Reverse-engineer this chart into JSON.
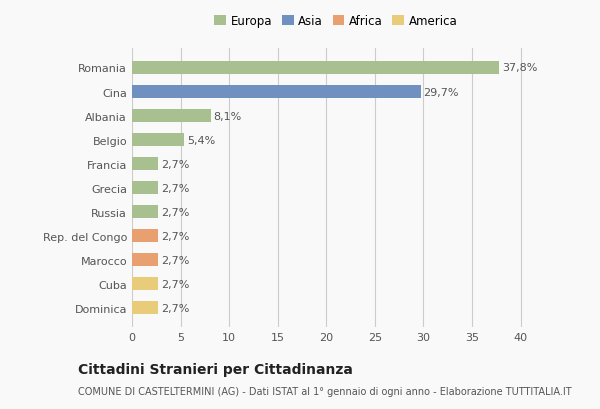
{
  "categories": [
    "Dominica",
    "Cuba",
    "Marocco",
    "Rep. del Congo",
    "Russia",
    "Grecia",
    "Francia",
    "Belgio",
    "Albania",
    "Cina",
    "Romania"
  ],
  "values": [
    2.7,
    2.7,
    2.7,
    2.7,
    2.7,
    2.7,
    2.7,
    5.4,
    8.1,
    29.7,
    37.8
  ],
  "labels": [
    "2,7%",
    "2,7%",
    "2,7%",
    "2,7%",
    "2,7%",
    "2,7%",
    "2,7%",
    "5,4%",
    "8,1%",
    "29,7%",
    "37,8%"
  ],
  "colors": [
    "#e8cc7a",
    "#e8cc7a",
    "#e8a070",
    "#e8a070",
    "#a8c090",
    "#a8c090",
    "#a8c090",
    "#a8c090",
    "#a8c090",
    "#7090c0",
    "#a8c090"
  ],
  "continent_colors": {
    "Europa": "#a8c090",
    "Asia": "#7090c0",
    "Africa": "#e8a070",
    "America": "#e8cc7a"
  },
  "xlim": [
    0,
    42
  ],
  "xticks": [
    0,
    5,
    10,
    15,
    20,
    25,
    30,
    35,
    40
  ],
  "title": "Cittadini Stranieri per Cittadinanza",
  "subtitle": "COMUNE DI CASTELTERMINI (AG) - Dati ISTAT al 1° gennaio di ogni anno - Elaborazione TUTTITALIA.IT",
  "background_color": "#f9f9f9",
  "bar_height": 0.55,
  "grid_color": "#cccccc",
  "label_fontsize": 8,
  "tick_fontsize": 8,
  "legend_fontsize": 8.5
}
